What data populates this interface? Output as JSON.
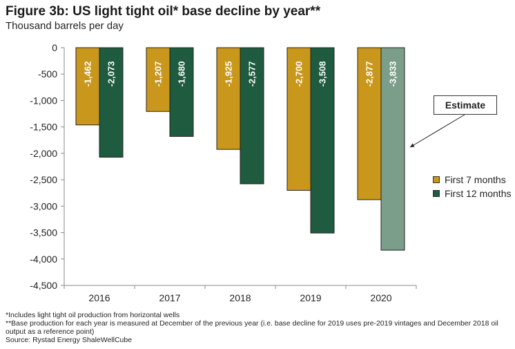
{
  "title": "Figure 3b: US light tight oil* base decline by year**",
  "subtitle": "Thousand barrels per day",
  "chart_data": {
    "type": "bar",
    "categories": [
      "2016",
      "2017",
      "2018",
      "2019",
      "2020"
    ],
    "series": [
      {
        "name": "First 7 months",
        "values": [
          -1462,
          -1207,
          -1925,
          -2700,
          -2877
        ],
        "labels": [
          "-1,462",
          "-1,207",
          "-1,925",
          "-2,700",
          "-2,877"
        ],
        "color": "#C9971C"
      },
      {
        "name": "First 12 months",
        "values": [
          -2073,
          -1680,
          -2577,
          -3508,
          -3833
        ],
        "labels": [
          "-2,073",
          "-1,680",
          "-2,577",
          "-3,508",
          "-3,833"
        ],
        "color": "#1E5B3F",
        "estimate_color": "#7A9E8A"
      }
    ],
    "ylim": [
      -4500,
      0
    ],
    "yticks": [
      0,
      -500,
      -1000,
      -1500,
      -2000,
      -2500,
      -3000,
      -3500,
      -4000,
      -4500
    ],
    "ytick_labels": [
      "0",
      "-500",
      "-1,000",
      "-1,500",
      "-2,000",
      "-2,500",
      "-3,000",
      "-3,500",
      "-4,000",
      "-4,500"
    ],
    "grid": false,
    "legend_position": "right",
    "annotation": "Estimate"
  },
  "footnotes": [
    "*Includes light tight oil production from horizontal wells",
    "**Base production for each year is measured at December of the previous year (i.e. base decline for 2019 uses pre-2019 vintages and December 2018 oil output as a reference point)",
    "Source: Rystad Energy ShaleWellCube"
  ]
}
